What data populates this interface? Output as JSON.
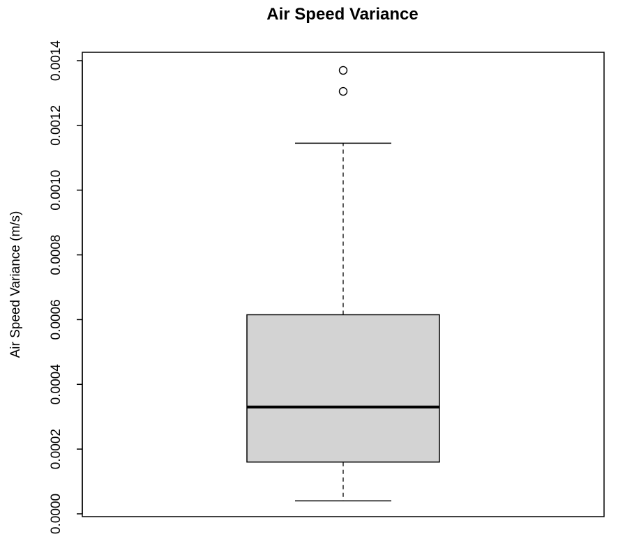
{
  "chart_data": {
    "type": "box",
    "title": "Air Speed Variance",
    "xlabel": "",
    "ylabel": "Air Speed Variance (m/s)",
    "ylim": [
      0.0,
      0.0014
    ],
    "yticks": [
      "0.0000",
      "0.0002",
      "0.0004",
      "0.0006",
      "0.0008",
      "0.0010",
      "0.0012",
      "0.0014"
    ],
    "grid": false,
    "box": {
      "whisker_low": 4e-05,
      "q1": 0.00016,
      "median": 0.00033,
      "q3": 0.000615,
      "whisker_high": 0.001145
    },
    "outliers": [
      0.00137,
      0.001305
    ],
    "colors": {
      "box_fill": "#d3d3d3",
      "line": "#000000"
    }
  }
}
